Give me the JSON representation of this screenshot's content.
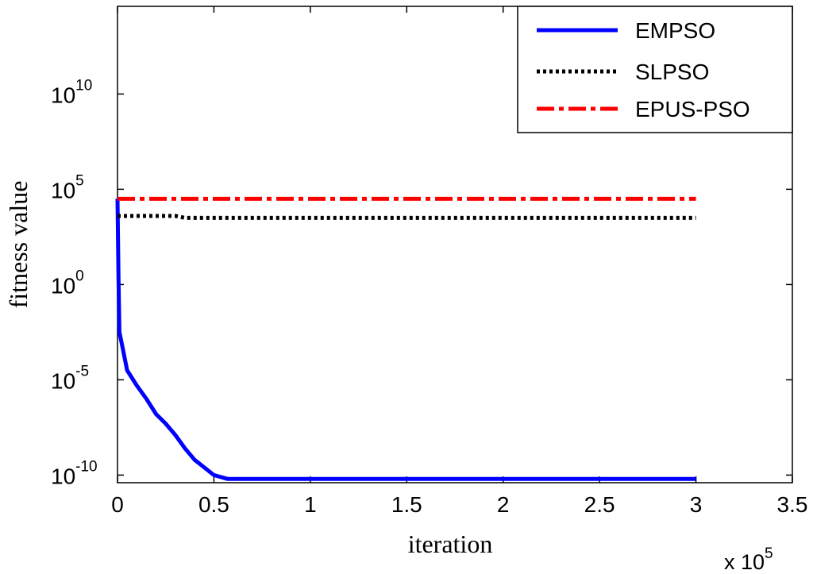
{
  "chart_data": {
    "type": "line",
    "xlabel": "iteration",
    "ylabel": "fitness value",
    "x_multiplier": {
      "base": "x 10",
      "exponent": "5"
    },
    "xlim": [
      0,
      3.5
    ],
    "ylim_log10": [
      -10.4,
      14.6
    ],
    "y_scale": "log",
    "x_ticks": [
      "0",
      "0.5",
      "1",
      "1.5",
      "2",
      "2.5",
      "3",
      "3.5"
    ],
    "y_ticks": [
      {
        "value": -10,
        "base": "10",
        "exp": "-10"
      },
      {
        "value": -5,
        "base": "10",
        "exp": "-5"
      },
      {
        "value": 0,
        "base": "10",
        "exp": "0"
      },
      {
        "value": 5,
        "base": "10",
        "exp": "5"
      },
      {
        "value": 10,
        "base": "10",
        "exp": "10"
      }
    ],
    "legend_position": "top-right",
    "grid": false,
    "series": [
      {
        "name": "EMPSO",
        "color": "#0000ff",
        "dash": "solid",
        "log10_points": [
          [
            0,
            4.5
          ],
          [
            0.005,
            0.5
          ],
          [
            0.01,
            -2.5
          ],
          [
            0.02,
            -3.0
          ],
          [
            0.05,
            -4.5
          ],
          [
            0.1,
            -5.3
          ],
          [
            0.15,
            -6.0
          ],
          [
            0.2,
            -6.8
          ],
          [
            0.25,
            -7.3
          ],
          [
            0.3,
            -7.9
          ],
          [
            0.35,
            -8.6
          ],
          [
            0.4,
            -9.2
          ],
          [
            0.45,
            -9.6
          ],
          [
            0.5,
            -10.0
          ],
          [
            0.57,
            -10.2
          ],
          [
            1.0,
            -10.2
          ],
          [
            2.0,
            -10.2
          ],
          [
            3.0,
            -10.2
          ]
        ]
      },
      {
        "name": "SLPSO",
        "color": "#000000",
        "dash": "dotted",
        "log10_points": [
          [
            0,
            3.6
          ],
          [
            0.3,
            3.6
          ],
          [
            0.35,
            3.5
          ],
          [
            1.0,
            3.5
          ],
          [
            2.0,
            3.5
          ],
          [
            3.0,
            3.5
          ]
        ]
      },
      {
        "name": "EPUS-PSO",
        "color": "#ff0000",
        "dash": "dashdot",
        "log10_points": [
          [
            0,
            4.5
          ],
          [
            1.0,
            4.5
          ],
          [
            2.0,
            4.5
          ],
          [
            3.0,
            4.5
          ]
        ]
      }
    ]
  }
}
